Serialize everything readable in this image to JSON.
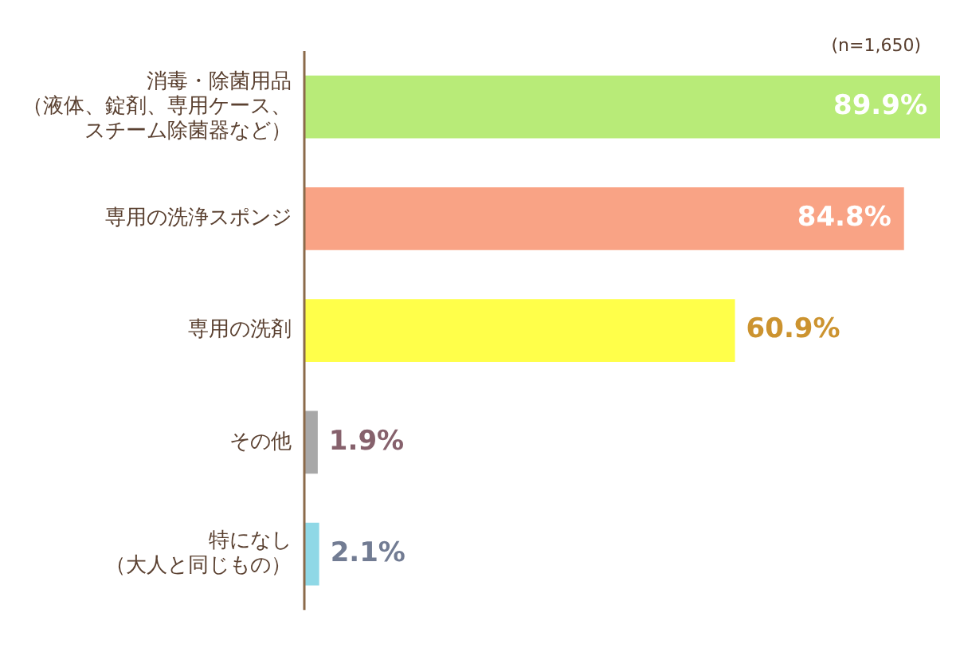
{
  "chart_data": {
    "type": "bar",
    "orientation": "horizontal",
    "categories": [
      "消毒・除菌用品（液体、錠剤、専用ケース、スチーム除菌器など）",
      "専用の洗浄スポンジ",
      "専用の洗剤",
      "その他",
      "特になし（大人と同じもの）"
    ],
    "values": [
      89.9,
      84.8,
      60.9,
      1.9,
      2.1
    ],
    "colors": [
      "#b8eb78",
      "#f9a385",
      "#ffff4a",
      "#a8a8a8",
      "#8fd8e6"
    ],
    "value_labels": [
      "89.9%",
      "84.8%",
      "60.9%",
      "1.9%",
      "2.1%"
    ],
    "annotations": [
      "(n=1,650)"
    ],
    "grid": false,
    "legend": false
  }
}
